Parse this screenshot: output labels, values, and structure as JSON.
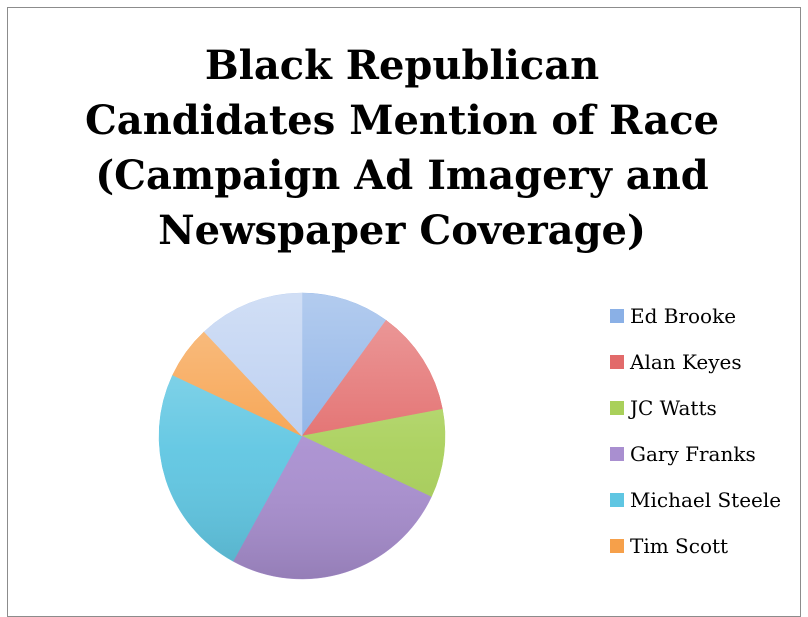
{
  "chart_data": {
    "type": "pie",
    "title_lines": [
      "Black Republican",
      "Candidates Mention of Race",
      "(Campaign Ad Imagery and",
      "Newspaper Coverage)"
    ],
    "legend_position": "right",
    "series": [
      {
        "name": "Ed Brooke",
        "value": 10,
        "color": "#8ab0e6"
      },
      {
        "name": "Alan Keyes",
        "value": 12,
        "color": "#e26a6a"
      },
      {
        "name": "JC Watts",
        "value": 10,
        "color": "#a9d05a"
      },
      {
        "name": "Gary Franks",
        "value": 26,
        "color": "#a98fd0"
      },
      {
        "name": "Michael Steele",
        "value": 24,
        "color": "#5fc6e2"
      },
      {
        "name": "Tim Scott",
        "value": 6,
        "color": "#f6a04a"
      },
      {
        "name": "",
        "value": 12,
        "color": "#b8cdf0"
      }
    ]
  }
}
